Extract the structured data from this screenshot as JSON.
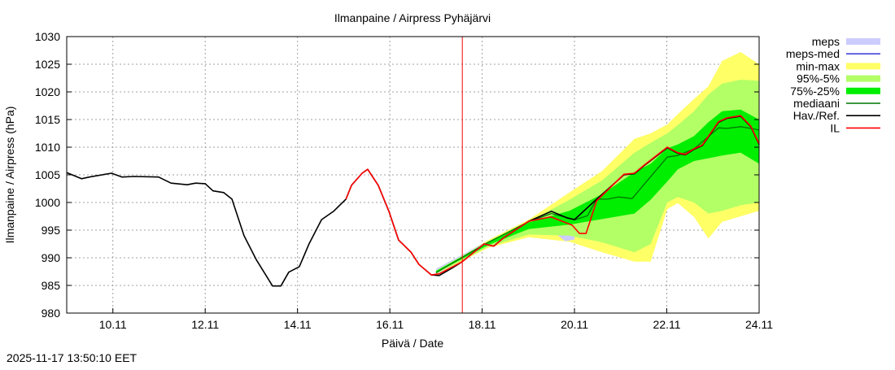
{
  "chart_data": {
    "type": "line",
    "title": "Ilmanpaine / Airpress Pyhäjärvi",
    "xlabel": "Päivä / Date",
    "ylabel": "Ilmanpaine / Airpress (hPa)",
    "x_unit": "days since 9.11 00:00",
    "xlim": [
      0,
      15
    ],
    "ylim": [
      980,
      1030
    ],
    "grid": true,
    "legend_position": "right-outside",
    "yticks": [
      980,
      985,
      990,
      995,
      1000,
      1005,
      1010,
      1015,
      1020,
      1025,
      1030
    ],
    "xticks": [
      {
        "day": 1,
        "label": "10.11"
      },
      {
        "day": 3,
        "label": "12.11"
      },
      {
        "day": 5,
        "label": "14.11"
      },
      {
        "day": 7,
        "label": "16.11"
      },
      {
        "day": 9,
        "label": "18.11"
      },
      {
        "day": 11,
        "label": "20.11"
      },
      {
        "day": 13,
        "label": "22.11"
      },
      {
        "day": 15,
        "label": "24.11"
      }
    ],
    "now_marker_day": 8.57,
    "legend": [
      {
        "key": "meps",
        "label": "meps",
        "color": "#ccccff",
        "kind": "band"
      },
      {
        "key": "meps_med",
        "label": "meps-med",
        "color": "#4444dd",
        "kind": "line"
      },
      {
        "key": "minmax",
        "label": "min-max",
        "color": "#ffff66",
        "kind": "band"
      },
      {
        "key": "p95_5",
        "label": "95%-5%",
        "color": "#b3ff66",
        "kind": "band"
      },
      {
        "key": "p75_25",
        "label": "75%-25%",
        "color": "#00ee00",
        "kind": "band"
      },
      {
        "key": "median",
        "label": "mediaani",
        "color": "#007700",
        "kind": "line"
      },
      {
        "key": "ref",
        "label": "Hav./Ref.",
        "color": "#000000",
        "kind": "line"
      },
      {
        "key": "il",
        "label": "IL",
        "color": "#ff0000",
        "kind": "line"
      }
    ],
    "band_days": [
      8.0,
      9.13,
      10.01,
      10.89,
      11.6,
      12.3,
      12.65,
      13.01,
      13.24,
      13.59,
      13.9,
      14.2,
      14.6,
      15.0
    ],
    "bands": {
      "minmax": {
        "lo": [
          987.0,
          991.8,
          993.7,
          992.9,
          991.0,
          989.3,
          989.3,
          998.8,
          999.9,
          997.4,
          993.5,
          996.5,
          997.5,
          998.5
        ],
        "hi": [
          987.8,
          993.2,
          996.9,
          1001.8,
          1005.7,
          1011.5,
          1012.5,
          1014.1,
          1016.0,
          1018.7,
          1021.0,
          1025.6,
          1027.2,
          1025.0
        ]
      },
      "p95_5": {
        "lo": [
          987.1,
          992.0,
          994.2,
          994.0,
          992.8,
          991.0,
          992.5,
          1000.0,
          1001.0,
          1000.0,
          998.0,
          998.5,
          999.5,
          1000.0
        ],
        "hi": [
          987.7,
          993.0,
          996.5,
          1000.5,
          1004.0,
          1009.0,
          1010.8,
          1012.5,
          1014.0,
          1016.5,
          1019.5,
          1021.5,
          1022.2,
          1022.0
        ]
      },
      "p75_25": {
        "lo": [
          987.3,
          992.3,
          995.2,
          996.0,
          997.0,
          998.0,
          1000.5,
          1003.8,
          1006.0,
          1007.5,
          1008.0,
          1008.5,
          1009.0,
          1007.0
        ],
        "hi": [
          987.6,
          992.8,
          996.4,
          998.5,
          1001.5,
          1005.5,
          1007.0,
          1009.8,
          1010.5,
          1012.0,
          1014.5,
          1016.5,
          1016.8,
          1015.0
        ]
      }
    },
    "meps_band": {
      "days": [
        8.0,
        9.0,
        10.0,
        10.5,
        10.8,
        11.0
      ],
      "lo": [
        987.0,
        991.6,
        994.5,
        995.0,
        993.0,
        993.3
      ],
      "hi": [
        988.0,
        992.5,
        996.0,
        997.0,
        996.5,
        996.0
      ]
    },
    "series": [
      {
        "key": "median",
        "name": "mediaani",
        "points": [
          [
            8.0,
            987.3
          ],
          [
            9.04,
            992.4
          ],
          [
            10.0,
            996.5
          ],
          [
            10.5,
            998.0
          ],
          [
            11.02,
            996.9
          ],
          [
            11.28,
            997.6
          ],
          [
            11.48,
            1000.6
          ],
          [
            11.72,
            1000.6
          ],
          [
            11.95,
            1001.0
          ],
          [
            12.25,
            1000.7
          ],
          [
            12.53,
            1003.5
          ],
          [
            13.01,
            1008.2
          ],
          [
            13.24,
            1008.5
          ],
          [
            13.59,
            1009.7
          ],
          [
            14.12,
            1013.5
          ],
          [
            14.3,
            1013.4
          ],
          [
            14.6,
            1013.7
          ],
          [
            14.82,
            1013.4
          ],
          [
            15.0,
            1013.1
          ]
        ]
      },
      {
        "key": "ref",
        "name": "Hav./Ref.",
        "points": [
          [
            0,
            1005.4
          ],
          [
            0.32,
            1004.3
          ],
          [
            0.49,
            1004.6
          ],
          [
            0.97,
            1005.3
          ],
          [
            1.2,
            1004.6
          ],
          [
            1.46,
            1004.7
          ],
          [
            1.99,
            1004.6
          ],
          [
            2.26,
            1003.5
          ],
          [
            2.61,
            1003.2
          ],
          [
            2.79,
            1003.5
          ],
          [
            3.0,
            1003.4
          ],
          [
            3.17,
            1002.1
          ],
          [
            3.4,
            1001.8
          ],
          [
            3.58,
            1000.6
          ],
          [
            3.84,
            994.0
          ],
          [
            4.11,
            989.6
          ],
          [
            4.46,
            984.9
          ],
          [
            4.64,
            984.9
          ],
          [
            4.81,
            987.4
          ],
          [
            5.04,
            988.4
          ],
          [
            5.25,
            992.5
          ],
          [
            5.52,
            996.9
          ],
          [
            5.78,
            998.4
          ],
          [
            6.05,
            1000.6
          ],
          [
            6.17,
            1003.1
          ],
          [
            6.4,
            1005.3
          ],
          [
            6.52,
            1006.0
          ],
          [
            6.75,
            1003.1
          ],
          [
            6.98,
            998.4
          ],
          [
            7.19,
            993.2
          ],
          [
            7.46,
            991.0
          ],
          [
            7.63,
            988.8
          ],
          [
            7.9,
            986.9
          ],
          [
            8.07,
            986.8
          ],
          [
            8.34,
            988.1
          ],
          [
            8.57,
            989.3
          ],
          [
            9.04,
            992.5
          ],
          [
            9.25,
            992.1
          ],
          [
            9.48,
            993.7
          ],
          [
            10.01,
            996.6
          ],
          [
            10.5,
            998.4
          ],
          [
            10.84,
            997.2
          ],
          [
            11.0,
            996.9
          ],
          [
            11.48,
            1000.6
          ],
          [
            12.07,
            1005.0
          ],
          [
            12.3,
            1005.2
          ],
          [
            12.53,
            1006.8
          ],
          [
            13.01,
            1009.9
          ],
          [
            13.24,
            1008.9
          ],
          [
            13.4,
            1008.6
          ],
          [
            13.59,
            1009.6
          ],
          [
            13.77,
            1010.3
          ],
          [
            14.12,
            1014.5
          ],
          [
            14.3,
            1015.2
          ],
          [
            14.6,
            1015.6
          ],
          [
            14.82,
            1013.7
          ],
          [
            15.0,
            1010.5
          ]
        ]
      },
      {
        "key": "il",
        "name": "IL",
        "points": [
          [
            6.05,
            1000.6
          ],
          [
            6.17,
            1003.1
          ],
          [
            6.4,
            1005.3
          ],
          [
            6.52,
            1006.0
          ],
          [
            6.75,
            1003.1
          ],
          [
            6.98,
            998.4
          ],
          [
            7.19,
            993.2
          ],
          [
            7.46,
            991.0
          ],
          [
            7.63,
            988.8
          ],
          [
            7.9,
            986.9
          ],
          [
            8.07,
            987.1
          ],
          [
            8.57,
            989.3
          ],
          [
            9.04,
            992.5
          ],
          [
            9.25,
            992.1
          ],
          [
            9.48,
            993.7
          ],
          [
            10.01,
            996.6
          ],
          [
            10.49,
            997.4
          ],
          [
            10.95,
            995.9
          ],
          [
            11.11,
            994.4
          ],
          [
            11.25,
            994.4
          ],
          [
            11.48,
            1000.3
          ],
          [
            12.07,
            1005.1
          ],
          [
            12.3,
            1005.3
          ],
          [
            12.53,
            1006.9
          ],
          [
            13.01,
            1010.0
          ],
          [
            13.24,
            1009.0
          ],
          [
            13.4,
            1008.7
          ],
          [
            13.59,
            1009.7
          ],
          [
            13.77,
            1010.4
          ],
          [
            14.12,
            1014.6
          ],
          [
            14.3,
            1015.3
          ],
          [
            14.6,
            1015.7
          ],
          [
            14.82,
            1013.8
          ],
          [
            15.0,
            1010.6
          ]
        ]
      }
    ]
  },
  "footer": {
    "timestamp": "2025-11-17 13:50:10 EET"
  }
}
